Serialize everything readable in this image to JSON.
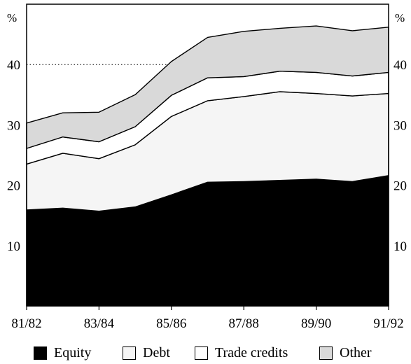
{
  "chart_data": {
    "type": "area",
    "stacked": true,
    "title": "",
    "xlabel": "",
    "ylabel": "%",
    "ylim": [
      0,
      50
    ],
    "yticks": [
      10,
      20,
      30,
      40
    ],
    "x_tick_labels": [
      "81/82",
      "83/84",
      "85/86",
      "87/88",
      "89/90",
      "91/92"
    ],
    "categories": [
      "81/82",
      "82/83",
      "83/84",
      "84/85",
      "85/86",
      "86/87",
      "87/88",
      "88/89",
      "89/90",
      "90/91",
      "91/92"
    ],
    "reference_line": {
      "y": 40,
      "style": "dotted"
    },
    "series": [
      {
        "name": "Equity",
        "color": "#000000",
        "values": [
          15.9,
          16.2,
          15.7,
          16.4,
          18.4,
          20.5,
          20.6,
          20.8,
          21.0,
          20.6,
          21.6
        ]
      },
      {
        "name": "Debt",
        "color": "#f5f5f5",
        "values": [
          7.6,
          9.1,
          8.7,
          10.3,
          13.0,
          13.5,
          14.1,
          14.7,
          14.2,
          14.2,
          13.6
        ]
      },
      {
        "name": "Trade credits",
        "color": "#ffffff",
        "values": [
          2.6,
          2.7,
          2.8,
          3.0,
          3.5,
          3.8,
          3.3,
          3.4,
          3.5,
          3.3,
          3.5
        ]
      },
      {
        "name": "Other",
        "color": "#d9d9d9",
        "values": [
          4.2,
          4.0,
          4.9,
          5.3,
          5.6,
          6.7,
          7.5,
          7.1,
          7.7,
          7.5,
          7.5
        ]
      }
    ],
    "grid": false,
    "legend_position": "bottom"
  }
}
